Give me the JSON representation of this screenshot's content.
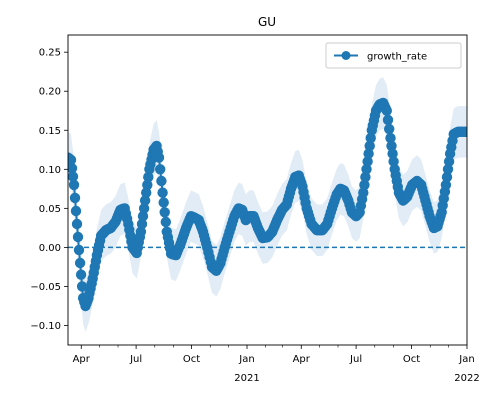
{
  "chart_data": {
    "type": "line",
    "title": "GU",
    "xlabel": "",
    "ylabel": "",
    "ylim": [
      -0.125,
      0.272
    ],
    "xlim": [
      "2020-03-10",
      "2022-01-01"
    ],
    "yticks": [
      {
        "value": 0.25,
        "label": "0.25"
      },
      {
        "value": 0.2,
        "label": "0.20"
      },
      {
        "value": 0.15,
        "label": "0.15"
      },
      {
        "value": 0.1,
        "label": "0.10"
      },
      {
        "value": 0.05,
        "label": "0.05"
      },
      {
        "value": 0.0,
        "label": "0.00"
      },
      {
        "value": -0.05,
        "label": "−0.05"
      },
      {
        "value": -0.1,
        "label": "−0.10"
      }
    ],
    "xticks_major": [
      {
        "date": "2020-04-01",
        "label": "Apr",
        "sublabel": ""
      },
      {
        "date": "2020-07-01",
        "label": "Jul",
        "sublabel": ""
      },
      {
        "date": "2020-10-01",
        "label": "Oct",
        "sublabel": ""
      },
      {
        "date": "2021-01-01",
        "label": "Jan",
        "sublabel": "2021"
      },
      {
        "date": "2021-04-01",
        "label": "Apr",
        "sublabel": ""
      },
      {
        "date": "2021-07-01",
        "label": "Jul",
        "sublabel": ""
      },
      {
        "date": "2021-10-01",
        "label": "Oct",
        "sublabel": ""
      },
      {
        "date": "2022-01-01",
        "label": "Jan",
        "sublabel": "2022"
      }
    ],
    "reference_line": {
      "y": 0.0,
      "style": "dashed"
    },
    "legend": {
      "position": "top-right",
      "entries": [
        "growth_rate"
      ]
    },
    "colors": {
      "line": "#1f77b4",
      "band": "#dce9f5",
      "zero_line": "#1f77b4"
    },
    "series": [
      {
        "name": "growth_rate",
        "band_halfwidth": 0.033,
        "points": [
          [
            "2020-03-10",
            0.115
          ],
          [
            "2020-03-15",
            0.112
          ],
          [
            "2020-03-20",
            0.08
          ],
          [
            "2020-03-25",
            0.03
          ],
          [
            "2020-03-30",
            -0.02
          ],
          [
            "2020-04-04",
            -0.065
          ],
          [
            "2020-04-08",
            -0.075
          ],
          [
            "2020-04-13",
            -0.065
          ],
          [
            "2020-04-20",
            -0.04
          ],
          [
            "2020-04-27",
            -0.01
          ],
          [
            "2020-05-04",
            0.015
          ],
          [
            "2020-05-12",
            0.022
          ],
          [
            "2020-05-20",
            0.025
          ],
          [
            "2020-05-28",
            0.033
          ],
          [
            "2020-06-05",
            0.048
          ],
          [
            "2020-06-12",
            0.05
          ],
          [
            "2020-06-18",
            0.03
          ],
          [
            "2020-06-25",
            0.0
          ],
          [
            "2020-07-02",
            -0.007
          ],
          [
            "2020-07-09",
            0.02
          ],
          [
            "2020-07-16",
            0.06
          ],
          [
            "2020-07-23",
            0.1
          ],
          [
            "2020-07-30",
            0.125
          ],
          [
            "2020-08-04",
            0.13
          ],
          [
            "2020-08-08",
            0.115
          ],
          [
            "2020-08-14",
            0.07
          ],
          [
            "2020-08-21",
            0.02
          ],
          [
            "2020-08-28",
            -0.008
          ],
          [
            "2020-09-05",
            -0.01
          ],
          [
            "2020-09-13",
            0.005
          ],
          [
            "2020-09-22",
            0.025
          ],
          [
            "2020-09-30",
            0.04
          ],
          [
            "2020-10-06",
            0.038
          ],
          [
            "2020-10-13",
            0.035
          ],
          [
            "2020-10-20",
            0.02
          ],
          [
            "2020-10-27",
            0.0
          ],
          [
            "2020-11-04",
            -0.025
          ],
          [
            "2020-11-11",
            -0.03
          ],
          [
            "2020-11-18",
            -0.02
          ],
          [
            "2020-11-25",
            0.0
          ],
          [
            "2020-12-03",
            0.02
          ],
          [
            "2020-12-11",
            0.04
          ],
          [
            "2020-12-18",
            0.05
          ],
          [
            "2020-12-24",
            0.048
          ],
          [
            "2020-12-30",
            0.035
          ],
          [
            "2021-01-05",
            0.04
          ],
          [
            "2021-01-12",
            0.04
          ],
          [
            "2021-01-19",
            0.025
          ],
          [
            "2021-01-27",
            0.012
          ],
          [
            "2021-02-04",
            0.013
          ],
          [
            "2021-02-12",
            0.02
          ],
          [
            "2021-02-20",
            0.035
          ],
          [
            "2021-02-28",
            0.048
          ],
          [
            "2021-03-08",
            0.055
          ],
          [
            "2021-03-15",
            0.075
          ],
          [
            "2021-03-22",
            0.09
          ],
          [
            "2021-03-28",
            0.092
          ],
          [
            "2021-04-03",
            0.078
          ],
          [
            "2021-04-10",
            0.05
          ],
          [
            "2021-04-18",
            0.03
          ],
          [
            "2021-04-27",
            0.022
          ],
          [
            "2021-05-06",
            0.022
          ],
          [
            "2021-05-14",
            0.03
          ],
          [
            "2021-05-22",
            0.05
          ],
          [
            "2021-05-30",
            0.068
          ],
          [
            "2021-06-05",
            0.075
          ],
          [
            "2021-06-11",
            0.073
          ],
          [
            "2021-06-18",
            0.06
          ],
          [
            "2021-06-24",
            0.045
          ],
          [
            "2021-07-01",
            0.04
          ],
          [
            "2021-07-07",
            0.045
          ],
          [
            "2021-07-13",
            0.07
          ],
          [
            "2021-07-20",
            0.11
          ],
          [
            "2021-07-27",
            0.15
          ],
          [
            "2021-08-03",
            0.175
          ],
          [
            "2021-08-09",
            0.183
          ],
          [
            "2021-08-15",
            0.185
          ],
          [
            "2021-08-21",
            0.175
          ],
          [
            "2021-08-27",
            0.14
          ],
          [
            "2021-09-03",
            0.1
          ],
          [
            "2021-09-10",
            0.07
          ],
          [
            "2021-09-17",
            0.06
          ],
          [
            "2021-09-24",
            0.065
          ],
          [
            "2021-10-02",
            0.08
          ],
          [
            "2021-10-10",
            0.085
          ],
          [
            "2021-10-17",
            0.08
          ],
          [
            "2021-10-24",
            0.06
          ],
          [
            "2021-10-31",
            0.04
          ],
          [
            "2021-11-07",
            0.025
          ],
          [
            "2021-11-13",
            0.027
          ],
          [
            "2021-11-20",
            0.045
          ],
          [
            "2021-11-27",
            0.08
          ],
          [
            "2021-12-04",
            0.12
          ],
          [
            "2021-12-10",
            0.145
          ],
          [
            "2021-12-17",
            0.148
          ],
          [
            "2021-12-24",
            0.148
          ],
          [
            "2022-01-01",
            0.148
          ]
        ]
      }
    ]
  }
}
